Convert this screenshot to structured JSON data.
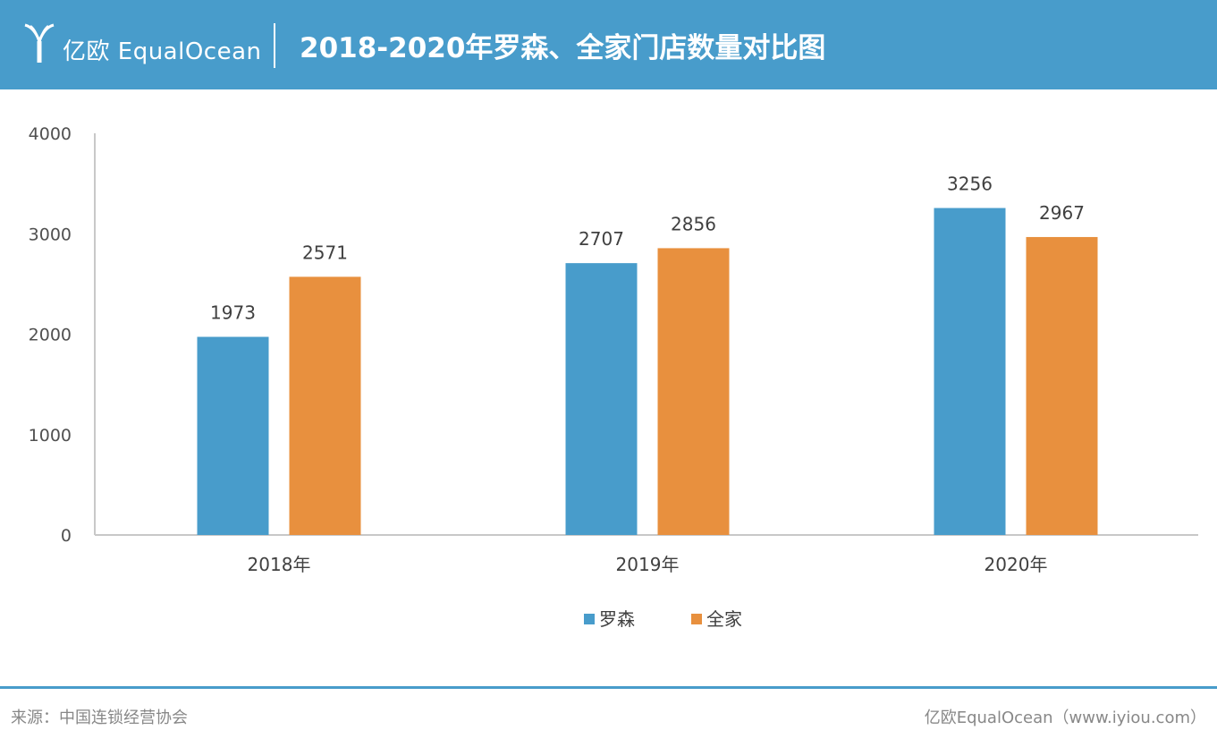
{
  "header": {
    "logo_text": "亿欧 EqualOcean",
    "title": "2018-2020年罗森、全家门店数量对比图"
  },
  "colors": {
    "header_bg": "#489ccb",
    "series_1": "#489ccb",
    "series_2": "#e8903e"
  },
  "chart_data": {
    "type": "bar",
    "title": "2018-2020年罗森、全家门店数量对比图",
    "categories": [
      "2018年",
      "2019年",
      "2020年"
    ],
    "series": [
      {
        "name": "罗森",
        "values": [
          1973,
          2707,
          3256
        ]
      },
      {
        "name": "全家",
        "values": [
          2571,
          2856,
          2967
        ]
      }
    ],
    "ylim": [
      0,
      4000
    ],
    "yticks": [
      0,
      1000,
      2000,
      3000,
      4000
    ],
    "grid": false,
    "legend_position": "bottom-center",
    "data_labels": true
  },
  "footer": {
    "source": "来源：中国连锁经营协会",
    "credit": "亿欧EqualOcean（www.iyiou.com）"
  }
}
